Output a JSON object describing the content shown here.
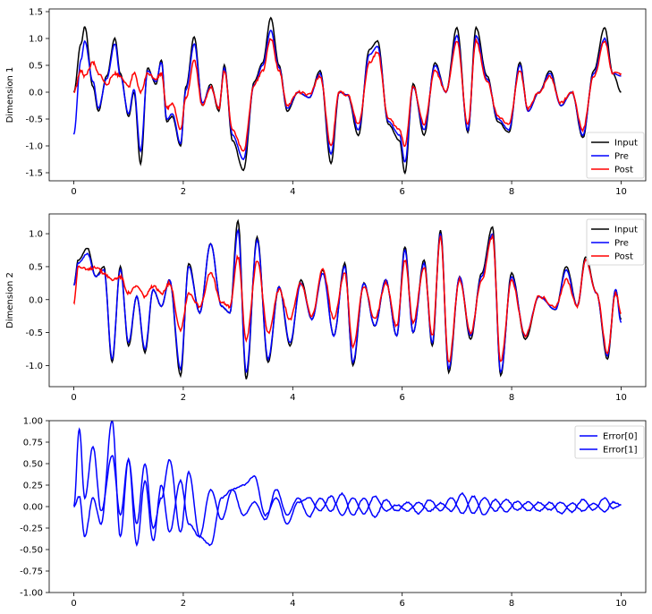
{
  "chart_data": [
    {
      "type": "line",
      "ylabel": "Dimension 1",
      "xlim": [
        -0.45,
        10.45
      ],
      "ylim": [
        -1.65,
        1.55
      ],
      "xticks": [
        0,
        2,
        4,
        6,
        8,
        10
      ],
      "xtick_labels": [
        "0",
        "2",
        "4",
        "6",
        "8",
        "10"
      ],
      "yticks": [
        -1.5,
        -1.0,
        -0.5,
        0.0,
        0.5,
        1.0,
        1.5
      ],
      "ytick_labels": [
        "-1.5",
        "-1.0",
        "-0.5",
        "0.0",
        "0.5",
        "1.0",
        "1.5"
      ],
      "legend_position": "lower-right",
      "grid": false,
      "series": [
        {
          "name": "Input",
          "color": "#000000",
          "x": [
            0.0,
            0.13,
            0.2,
            0.35,
            0.45,
            0.6,
            0.75,
            0.85,
            1.0,
            1.1,
            1.22,
            1.35,
            1.5,
            1.6,
            1.7,
            1.8,
            1.95,
            2.05,
            2.2,
            2.35,
            2.5,
            2.65,
            2.75,
            2.9,
            3.1,
            3.3,
            3.45,
            3.6,
            3.75,
            3.9,
            4.1,
            4.3,
            4.5,
            4.7,
            4.85,
            5.0,
            5.2,
            5.4,
            5.55,
            5.75,
            5.95,
            6.05,
            6.2,
            6.4,
            6.6,
            6.8,
            7.0,
            7.2,
            7.35,
            7.55,
            7.75,
            7.95,
            8.15,
            8.3,
            8.5,
            8.7,
            8.9,
            9.1,
            9.3,
            9.5,
            9.7,
            9.85,
            10.0
          ],
          "values": [
            0.0,
            0.9,
            1.22,
            0.1,
            -0.35,
            0.3,
            1.0,
            0.35,
            -0.45,
            0.0,
            -1.33,
            0.45,
            0.15,
            0.6,
            -0.55,
            -0.45,
            -1.0,
            0.1,
            1.03,
            -0.25,
            0.15,
            -0.35,
            0.5,
            -0.9,
            -1.45,
            0.2,
            0.55,
            1.38,
            0.5,
            -0.35,
            0.0,
            -0.1,
            0.4,
            -1.32,
            0.0,
            -0.05,
            -0.8,
            0.8,
            0.95,
            -0.6,
            -0.9,
            -1.5,
            0.15,
            -0.8,
            0.55,
            0.0,
            1.2,
            -0.75,
            1.2,
            0.3,
            -0.55,
            -0.75,
            0.55,
            -0.35,
            0.0,
            0.4,
            -0.25,
            0.0,
            -0.85,
            0.4,
            1.2,
            0.35,
            0.0
          ]
        },
        {
          "name": "Pre",
          "color": "#0000ff",
          "x": [
            0.0,
            0.13,
            0.2,
            0.35,
            0.45,
            0.6,
            0.75,
            0.85,
            1.0,
            1.1,
            1.22,
            1.35,
            1.5,
            1.6,
            1.7,
            1.8,
            1.95,
            2.05,
            2.2,
            2.35,
            2.5,
            2.65,
            2.75,
            2.9,
            3.1,
            3.3,
            3.45,
            3.6,
            3.75,
            3.9,
            4.1,
            4.3,
            4.5,
            4.7,
            4.85,
            5.0,
            5.2,
            5.4,
            5.55,
            5.75,
            5.95,
            6.05,
            6.2,
            6.4,
            6.6,
            6.8,
            7.0,
            7.2,
            7.35,
            7.55,
            7.75,
            7.95,
            8.15,
            8.3,
            8.5,
            8.7,
            8.9,
            9.1,
            9.3,
            9.5,
            9.7,
            9.85,
            10.0
          ],
          "values": [
            -0.78,
            0.6,
            0.95,
            0.2,
            -0.3,
            0.25,
            0.9,
            0.3,
            -0.4,
            0.05,
            -1.1,
            0.4,
            0.2,
            0.55,
            -0.5,
            -0.4,
            -0.95,
            0.05,
            0.9,
            -0.2,
            0.1,
            -0.3,
            0.45,
            -0.8,
            -1.25,
            0.15,
            0.5,
            1.15,
            0.45,
            -0.3,
            0.0,
            -0.1,
            0.35,
            -1.15,
            0.0,
            -0.05,
            -0.7,
            0.7,
            0.85,
            -0.55,
            -0.8,
            -1.3,
            0.1,
            -0.7,
            0.5,
            0.0,
            1.05,
            -0.7,
            1.05,
            0.25,
            -0.5,
            -0.7,
            0.5,
            -0.35,
            0.0,
            0.35,
            -0.25,
            0.0,
            -0.8,
            0.35,
            1.0,
            0.35,
            0.3
          ]
        },
        {
          "name": "Post",
          "color": "#ff0000",
          "x": [
            0.0,
            0.13,
            0.2,
            0.35,
            0.45,
            0.6,
            0.75,
            0.85,
            1.0,
            1.1,
            1.22,
            1.35,
            1.5,
            1.6,
            1.7,
            1.8,
            1.95,
            2.05,
            2.2,
            2.35,
            2.5,
            2.65,
            2.75,
            2.9,
            3.1,
            3.3,
            3.45,
            3.6,
            3.75,
            3.9,
            4.1,
            4.3,
            4.5,
            4.7,
            4.85,
            5.0,
            5.2,
            5.4,
            5.55,
            5.75,
            5.95,
            6.05,
            6.2,
            6.4,
            6.6,
            6.8,
            7.0,
            7.2,
            7.35,
            7.55,
            7.75,
            7.95,
            8.15,
            8.3,
            8.5,
            8.7,
            8.9,
            9.1,
            9.3,
            9.5,
            9.7,
            9.85,
            10.0
          ],
          "values": [
            0.0,
            0.4,
            0.3,
            0.55,
            0.35,
            0.15,
            0.35,
            0.3,
            0.1,
            0.35,
            0.0,
            0.35,
            0.25,
            0.35,
            -0.3,
            -0.2,
            -0.7,
            -0.1,
            0.6,
            -0.25,
            0.1,
            -0.3,
            0.4,
            -0.7,
            -1.1,
            0.15,
            0.4,
            1.0,
            0.4,
            -0.25,
            0.0,
            -0.05,
            0.3,
            -1.0,
            0.0,
            -0.05,
            -0.6,
            0.55,
            0.75,
            -0.5,
            -0.7,
            -1.0,
            0.1,
            -0.6,
            0.4,
            0.0,
            0.95,
            -0.6,
            0.95,
            0.2,
            -0.45,
            -0.6,
            0.4,
            -0.3,
            0.0,
            0.3,
            -0.2,
            0.0,
            -0.7,
            0.3,
            0.95,
            0.35,
            0.35
          ]
        }
      ]
    },
    {
      "type": "line",
      "ylabel": "Dimension 2",
      "xlim": [
        -0.45,
        10.45
      ],
      "ylim": [
        -1.32,
        1.3
      ],
      "xticks": [
        0,
        2,
        4,
        6,
        8,
        10
      ],
      "xtick_labels": [
        "0",
        "2",
        "4",
        "6",
        "8",
        "10"
      ],
      "yticks": [
        -1.0,
        -0.5,
        0.0,
        0.5,
        1.0
      ],
      "ytick_labels": [
        "-1.0",
        "-0.5",
        "0.0",
        "0.5",
        "1.0"
      ],
      "legend_position": "upper-right",
      "grid": false,
      "series": [
        {
          "name": "Input",
          "color": "#000000",
          "x": [
            0.0,
            0.08,
            0.25,
            0.4,
            0.55,
            0.7,
            0.85,
            1.0,
            1.15,
            1.3,
            1.45,
            1.6,
            1.75,
            1.95,
            2.1,
            2.3,
            2.5,
            2.7,
            2.85,
            3.0,
            3.15,
            3.35,
            3.55,
            3.75,
            3.95,
            4.15,
            4.35,
            4.55,
            4.75,
            4.95,
            5.1,
            5.3,
            5.5,
            5.7,
            5.9,
            6.05,
            6.2,
            6.4,
            6.55,
            6.7,
            6.85,
            7.05,
            7.25,
            7.45,
            7.65,
            7.8,
            8.0,
            8.25,
            8.5,
            8.8,
            9.0,
            9.2,
            9.35,
            9.55,
            9.75,
            9.9,
            10.0
          ],
          "values": [
            0.22,
            0.6,
            0.78,
            0.35,
            0.5,
            -0.95,
            0.5,
            -0.7,
            0.05,
            -0.8,
            0.15,
            -0.1,
            0.3,
            -1.15,
            0.55,
            -0.2,
            0.85,
            -0.1,
            -0.2,
            1.2,
            -1.2,
            0.95,
            -0.95,
            0.2,
            -0.7,
            0.3,
            -0.3,
            0.45,
            -0.55,
            0.55,
            -1.0,
            0.25,
            -0.4,
            0.3,
            -0.55,
            0.8,
            -0.5,
            0.6,
            -0.7,
            1.05,
            -1.1,
            0.35,
            -0.6,
            0.4,
            1.1,
            -1.15,
            0.4,
            -0.6,
            0.05,
            -0.15,
            0.5,
            -0.1,
            0.65,
            0.1,
            -0.9,
            0.15,
            -0.3
          ]
        },
        {
          "name": "Pre",
          "color": "#0000ff",
          "x": [
            0.0,
            0.08,
            0.25,
            0.4,
            0.55,
            0.7,
            0.85,
            1.0,
            1.15,
            1.3,
            1.45,
            1.6,
            1.75,
            1.95,
            2.1,
            2.3,
            2.5,
            2.7,
            2.85,
            3.0,
            3.15,
            3.35,
            3.55,
            3.75,
            3.95,
            4.15,
            4.35,
            4.55,
            4.75,
            4.95,
            5.1,
            5.3,
            5.5,
            5.7,
            5.9,
            6.05,
            6.2,
            6.4,
            6.55,
            6.7,
            6.85,
            7.05,
            7.25,
            7.45,
            7.65,
            7.8,
            8.0,
            8.25,
            8.5,
            8.8,
            9.0,
            9.2,
            9.35,
            9.55,
            9.75,
            9.9,
            10.0
          ],
          "values": [
            0.22,
            0.55,
            0.7,
            0.35,
            0.45,
            -0.9,
            0.45,
            -0.65,
            0.05,
            -0.75,
            0.15,
            -0.1,
            0.3,
            -1.05,
            0.5,
            -0.2,
            0.85,
            -0.1,
            -0.2,
            1.05,
            -1.1,
            0.9,
            -0.9,
            0.2,
            -0.65,
            0.25,
            -0.3,
            0.4,
            -0.55,
            0.5,
            -0.95,
            0.25,
            -0.4,
            0.3,
            -0.55,
            0.75,
            -0.5,
            0.55,
            -0.65,
            1.0,
            -1.05,
            0.35,
            -0.55,
            0.35,
            1.0,
            -1.1,
            0.35,
            -0.55,
            0.05,
            -0.15,
            0.45,
            -0.1,
            0.6,
            0.1,
            -0.85,
            0.15,
            -0.35
          ]
        },
        {
          "name": "Post",
          "color": "#ff0000",
          "x": [
            0.0,
            0.08,
            0.25,
            0.4,
            0.55,
            0.7,
            0.85,
            1.0,
            1.15,
            1.3,
            1.45,
            1.6,
            1.75,
            1.95,
            2.1,
            2.3,
            2.5,
            2.7,
            2.85,
            3.0,
            3.15,
            3.35,
            3.55,
            3.75,
            3.95,
            4.15,
            4.35,
            4.55,
            4.75,
            4.95,
            5.1,
            5.3,
            5.5,
            5.7,
            5.9,
            6.05,
            6.2,
            6.4,
            6.55,
            6.7,
            6.85,
            7.05,
            7.25,
            7.45,
            7.65,
            7.8,
            8.0,
            8.25,
            8.5,
            8.8,
            9.0,
            9.2,
            9.35,
            9.55,
            9.75,
            9.9,
            10.0
          ],
          "values": [
            -0.05,
            0.5,
            0.45,
            0.5,
            0.4,
            0.3,
            0.35,
            0.1,
            0.2,
            0.05,
            0.2,
            0.1,
            0.25,
            -0.45,
            0.1,
            -0.1,
            0.4,
            -0.05,
            -0.1,
            0.65,
            -0.6,
            0.6,
            -0.5,
            0.15,
            -0.3,
            0.25,
            -0.25,
            0.45,
            -0.3,
            0.4,
            -0.7,
            0.2,
            -0.3,
            0.25,
            -0.4,
            0.6,
            -0.35,
            0.5,
            -0.55,
            0.95,
            -0.95,
            0.3,
            -0.5,
            0.3,
            0.95,
            -0.95,
            0.3,
            -0.55,
            0.05,
            -0.1,
            0.3,
            -0.1,
            0.6,
            0.1,
            -0.8,
            0.1,
            -0.2
          ]
        }
      ]
    },
    {
      "type": "line",
      "ylabel": "",
      "xlim": [
        -0.45,
        10.45
      ],
      "ylim": [
        -1.0,
        1.0
      ],
      "xticks": [
        0,
        2,
        4,
        6,
        8,
        10
      ],
      "xtick_labels": [
        "0",
        "2",
        "4",
        "6",
        "8",
        "10"
      ],
      "yticks": [
        -1.0,
        -0.75,
        -0.5,
        -0.25,
        0.0,
        0.25,
        0.5,
        0.75,
        1.0
      ],
      "ytick_labels": [
        "-1.00",
        "-0.75",
        "-0.50",
        "-0.25",
        "0.00",
        "0.25",
        "0.50",
        "0.75",
        "1.00"
      ],
      "legend_position": "upper-right",
      "grid": false,
      "series": [
        {
          "name": "Error[0]",
          "color": "#0000ff",
          "x": [
            0.0,
            0.1,
            0.2,
            0.35,
            0.5,
            0.7,
            0.85,
            1.0,
            1.15,
            1.3,
            1.45,
            1.6,
            1.75,
            1.95,
            2.1,
            2.3,
            2.5,
            2.7,
            2.9,
            3.1,
            3.3,
            3.5,
            3.7,
            3.9,
            4.1,
            4.3,
            4.5,
            4.7,
            4.9,
            5.1,
            5.3,
            5.5,
            5.7,
            5.9,
            6.1,
            6.3,
            6.5,
            6.7,
            6.9,
            7.1,
            7.3,
            7.5,
            7.7,
            7.9,
            8.1,
            8.3,
            8.5,
            8.7,
            8.9,
            9.1,
            9.3,
            9.5,
            9.7,
            9.85,
            10.0
          ],
          "values": [
            0.0,
            0.9,
            0.1,
            0.7,
            -0.05,
            0.6,
            -0.1,
            0.55,
            -0.2,
            0.5,
            -0.25,
            0.1,
            0.55,
            -0.3,
            0.4,
            -0.35,
            0.2,
            -0.15,
            0.2,
            -0.1,
            0.05,
            -0.15,
            0.2,
            -0.1,
            0.1,
            -0.12,
            0.1,
            -0.05,
            0.15,
            -0.1,
            0.1,
            -0.12,
            0.08,
            -0.05,
            0.05,
            -0.08,
            0.08,
            -0.05,
            0.1,
            -0.08,
            0.12,
            -0.1,
            0.08,
            -0.06,
            0.06,
            -0.05,
            0.05,
            -0.04,
            0.05,
            -0.06,
            0.08,
            -0.04,
            0.1,
            -0.02,
            0.02
          ]
        },
        {
          "name": "Error[1]",
          "color": "#0000ff",
          "x": [
            0.0,
            0.1,
            0.2,
            0.35,
            0.5,
            0.7,
            0.85,
            1.0,
            1.15,
            1.3,
            1.45,
            1.6,
            1.75,
            1.95,
            2.1,
            2.3,
            2.5,
            2.7,
            2.9,
            3.1,
            3.3,
            3.5,
            3.7,
            3.9,
            4.1,
            4.3,
            4.5,
            4.7,
            4.9,
            5.1,
            5.3,
            5.5,
            5.7,
            5.9,
            6.1,
            6.3,
            6.5,
            6.7,
            6.9,
            7.1,
            7.3,
            7.5,
            7.7,
            7.9,
            8.1,
            8.3,
            8.5,
            8.7,
            8.9,
            9.1,
            9.3,
            9.5,
            9.7,
            9.85,
            10.0
          ],
          "values": [
            0.0,
            0.12,
            -0.35,
            0.1,
            -0.2,
            1.0,
            -0.35,
            0.55,
            -0.45,
            0.3,
            -0.4,
            0.25,
            -0.3,
            0.3,
            -0.2,
            -0.35,
            -0.45,
            0.1,
            0.2,
            0.25,
            0.35,
            -0.1,
            0.1,
            -0.2,
            0.05,
            0.1,
            -0.05,
            0.12,
            -0.1,
            0.1,
            -0.08,
            0.12,
            -0.05,
            0.02,
            -0.05,
            0.05,
            -0.05,
            0.04,
            -0.05,
            0.15,
            -0.08,
            0.1,
            -0.05,
            0.08,
            -0.04,
            0.05,
            -0.05,
            0.05,
            -0.08,
            0.04,
            -0.05,
            0.04,
            -0.06,
            0.05,
            0.02
          ]
        }
      ]
    }
  ]
}
